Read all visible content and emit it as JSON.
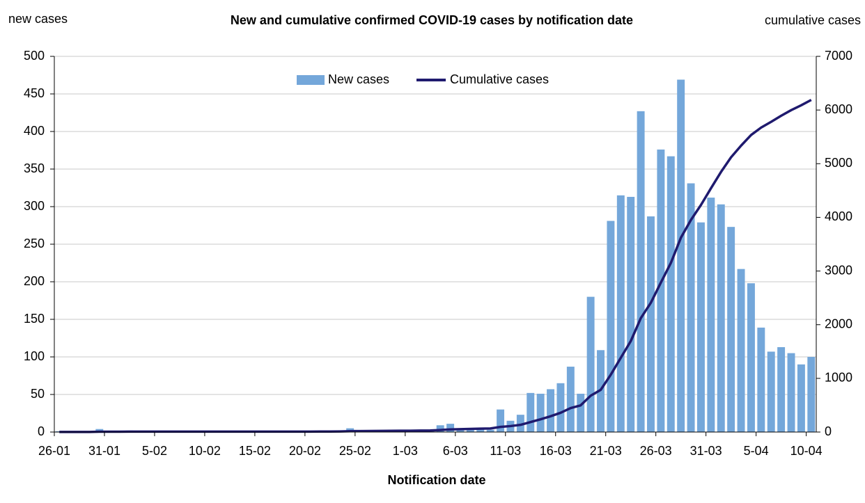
{
  "chart_data": {
    "type": "bar",
    "title": "New and cumulative confirmed COVID-19 cases by notification date",
    "y_label": "new cases",
    "y2_label": "cumulative cases",
    "x_label": "Notification date",
    "categories": [
      "26-01",
      null,
      null,
      null,
      null,
      "31-01",
      null,
      null,
      null,
      null,
      "5-02",
      null,
      null,
      null,
      null,
      "10-02",
      null,
      null,
      null,
      null,
      "15-02",
      null,
      null,
      null,
      null,
      "20-02",
      null,
      null,
      null,
      null,
      "25-02",
      null,
      null,
      null,
      null,
      "1-03",
      null,
      null,
      null,
      null,
      "6-03",
      null,
      null,
      null,
      null,
      "11-03",
      null,
      null,
      null,
      null,
      "16-03",
      null,
      null,
      null,
      null,
      "21-03",
      null,
      null,
      null,
      null,
      "26-03",
      null,
      null,
      null,
      null,
      "31-03",
      null,
      null,
      null,
      null,
      "5-04",
      null,
      null,
      null,
      null,
      "10-04"
    ],
    "series": [
      {
        "name": "New cases",
        "type": "bar",
        "color": "#74a7da",
        "values": [
          1,
          0,
          1,
          0,
          4,
          0,
          0,
          2,
          0,
          0,
          0,
          0,
          0,
          0,
          0,
          0,
          0,
          0,
          0,
          0,
          0,
          0,
          0,
          0,
          0,
          0,
          1,
          1,
          2,
          5,
          1,
          2,
          1,
          1,
          2,
          1,
          2,
          2,
          9,
          11,
          5,
          5,
          4,
          3,
          30,
          15,
          23,
          52,
          51,
          57,
          65,
          87,
          51,
          180,
          109,
          281,
          315,
          313,
          427,
          287,
          376,
          367,
          469,
          331,
          279,
          312,
          303,
          273,
          217,
          198,
          139,
          107,
          113,
          105,
          90,
          100
        ]
      },
      {
        "name": "Cumulative cases",
        "type": "line",
        "axis": "y2",
        "color": "#1f1a6e",
        "values": [
          1,
          1,
          2,
          2,
          6,
          6,
          6,
          8,
          8,
          8,
          8,
          8,
          8,
          8,
          8,
          8,
          8,
          8,
          8,
          8,
          8,
          8,
          8,
          8,
          8,
          8,
          9,
          10,
          12,
          17,
          18,
          20,
          21,
          22,
          24,
          25,
          27,
          29,
          38,
          49,
          54,
          59,
          63,
          66,
          96,
          111,
          134,
          186,
          237,
          294,
          359,
          446,
          497,
          677,
          786,
          1067,
          1382,
          1695,
          2122,
          2409,
          2785,
          3152,
          3621,
          3952,
          4231,
          4543,
          4846,
          5119,
          5336,
          5534,
          5673,
          5780,
          5893,
          5998,
          6088,
          6188
        ]
      }
    ],
    "ylim": [
      0,
      500
    ],
    "yticks": [
      0,
      50,
      100,
      150,
      200,
      250,
      300,
      350,
      400,
      450,
      500
    ],
    "y2lim": [
      0,
      7000
    ],
    "y2ticks": [
      0,
      1000,
      2000,
      3000,
      4000,
      5000,
      6000,
      7000
    ],
    "grid": true,
    "legend": "top"
  }
}
